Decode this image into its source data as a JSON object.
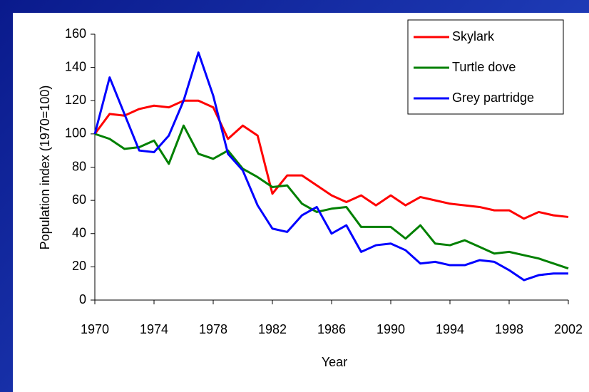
{
  "chart_data": {
    "type": "line",
    "x": [
      1970,
      1971,
      1972,
      1973,
      1974,
      1975,
      1976,
      1977,
      1978,
      1979,
      1980,
      1981,
      1982,
      1983,
      1984,
      1985,
      1986,
      1987,
      1988,
      1989,
      1990,
      1991,
      1992,
      1993,
      1994,
      1995,
      1996,
      1997,
      1998,
      1999,
      2000,
      2001,
      2002
    ],
    "series": [
      {
        "name": "Skylark",
        "color": "#ff0000",
        "values": [
          100,
          112,
          111,
          115,
          117,
          116,
          120,
          120,
          116,
          97,
          105,
          99,
          64,
          75,
          75,
          69,
          63,
          59,
          63,
          57,
          63,
          57,
          62,
          60,
          58,
          57,
          56,
          54,
          54,
          49,
          53,
          51,
          50
        ]
      },
      {
        "name": "Turtle dove",
        "color": "#008000",
        "values": [
          100,
          97,
          91,
          92,
          96,
          82,
          105,
          88,
          85,
          90,
          79,
          74,
          68,
          69,
          58,
          53,
          55,
          56,
          44,
          44,
          44,
          37,
          45,
          34,
          33,
          36,
          32,
          28,
          29,
          27,
          25,
          22,
          19
        ]
      },
      {
        "name": "Grey partridge",
        "color": "#0000ff",
        "values": [
          100,
          134,
          112,
          90,
          89,
          99,
          120,
          149,
          123,
          88,
          78,
          57,
          43,
          41,
          51,
          56,
          40,
          45,
          29,
          33,
          34,
          30,
          22,
          23,
          21,
          21,
          24,
          23,
          18,
          12,
          15,
          16,
          16
        ]
      }
    ],
    "xlabel": "Year",
    "ylabel": "Population index  (1970=100)",
    "xlim": [
      1970,
      2002
    ],
    "xticks": [
      1970,
      1974,
      1978,
      1982,
      1986,
      1990,
      1994,
      1998,
      2002
    ],
    "ylim": [
      0,
      160
    ],
    "yticks": [
      0,
      20,
      40,
      60,
      80,
      100,
      120,
      140,
      160
    ],
    "grid": false,
    "legend": "upper right"
  }
}
